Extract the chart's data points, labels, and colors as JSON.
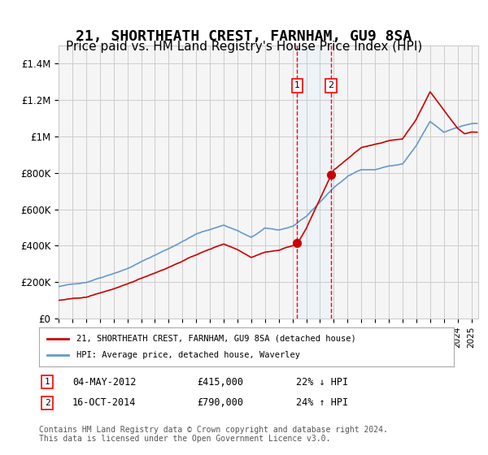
{
  "title": "21, SHORTHEATH CREST, FARNHAM, GU9 8SA",
  "subtitle": "Price paid vs. HM Land Registry's House Price Index (HPI)",
  "title_fontsize": 13,
  "subtitle_fontsize": 11,
  "xlabel": "",
  "ylabel": "",
  "ylim": [
    0,
    1500000
  ],
  "yticks": [
    0,
    200000,
    400000,
    600000,
    800000,
    1000000,
    1200000,
    1400000
  ],
  "ytick_labels": [
    "£0",
    "£200K",
    "£400K",
    "£600K",
    "£800K",
    "£1M",
    "£1.2M",
    "£1.4M"
  ],
  "xlim_start": 1995.0,
  "xlim_end": 2025.5,
  "sale1_x": 2012.34,
  "sale1_y": 415000,
  "sale1_label": "04-MAY-2012",
  "sale1_price": "£415,000",
  "sale1_hpi": "22% ↓ HPI",
  "sale2_x": 2014.79,
  "sale2_y": 790000,
  "sale2_label": "16-OCT-2014",
  "sale2_price": "£790,000",
  "sale2_hpi": "24% ↑ HPI",
  "line_color_property": "#cc0000",
  "line_color_hpi": "#6699cc",
  "legend_label_property": "21, SHORTHEATH CREST, FARNHAM, GU9 8SA (detached house)",
  "legend_label_hpi": "HPI: Average price, detached house, Waverley",
  "footer_text": "Contains HM Land Registry data © Crown copyright and database right 2024.\nThis data is licensed under the Open Government Licence v3.0.",
  "background_color": "#f5f5f5",
  "shade_color": "#ddeeff",
  "grid_color": "#cccccc"
}
